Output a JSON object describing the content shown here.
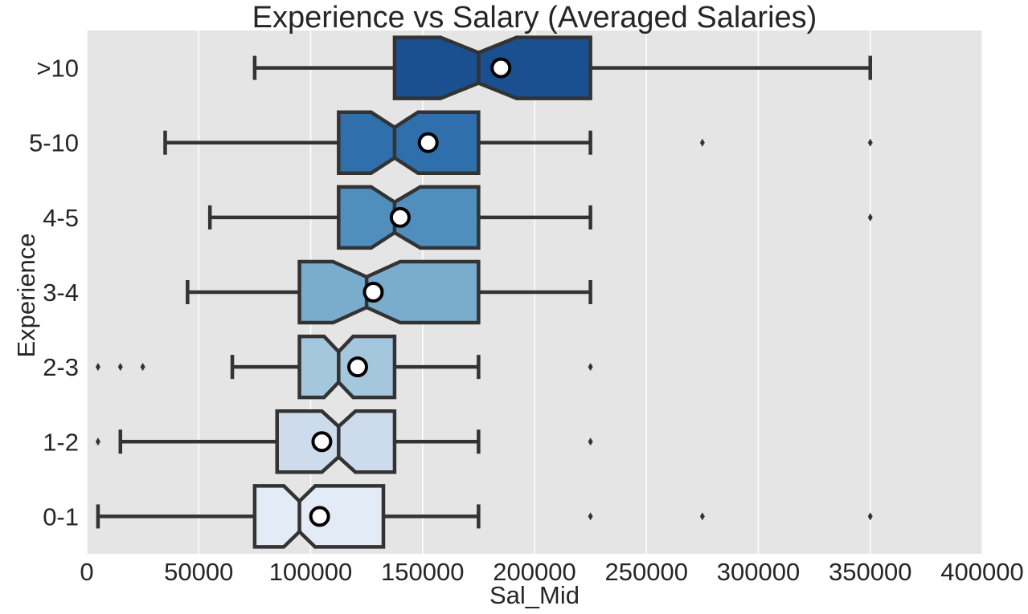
{
  "chart_data": {
    "type": "box",
    "orientation": "horizontal",
    "notched": true,
    "title": "Experience vs Salary (Averaged Salaries)",
    "xlabel": "Sal_Mid",
    "ylabel": "Experience",
    "xlim": [
      0,
      400000
    ],
    "xticks": [
      0,
      50000,
      100000,
      150000,
      200000,
      250000,
      300000,
      350000,
      400000
    ],
    "xtick_labels": [
      "0",
      "50000",
      "100000",
      "150000",
      "200000",
      "250000",
      "300000",
      "350000",
      "400000"
    ],
    "grid": true,
    "mean_marker": "white circle",
    "categories": [
      ">10",
      "5-10",
      "4-5",
      "3-4",
      "2-3",
      "1-2",
      "0-1"
    ],
    "boxes": [
      {
        "category": ">10",
        "whisker_low": 75000,
        "q1": 137500,
        "median": 175000,
        "q3": 225000,
        "whisker_high": 350000,
        "notch_low": 158000,
        "notch_high": 192000,
        "mean": 185000,
        "outliers": [],
        "color": "#1a5090"
      },
      {
        "category": "5-10",
        "whisker_low": 35000,
        "q1": 112500,
        "median": 137500,
        "q3": 175000,
        "whisker_high": 225000,
        "notch_low": 127000,
        "notch_high": 148000,
        "mean": 152500,
        "outliers": [
          275000,
          350000
        ],
        "color": "#2f6fab"
      },
      {
        "category": "4-5",
        "whisker_low": 55000,
        "q1": 112500,
        "median": 137500,
        "q3": 175000,
        "whisker_high": 225000,
        "notch_low": 127000,
        "notch_high": 149000,
        "mean": 140000,
        "outliers": [
          350000
        ],
        "color": "#4f8ebd"
      },
      {
        "category": "3-4",
        "whisker_low": 45000,
        "q1": 95000,
        "median": 125000,
        "q3": 175000,
        "whisker_high": 225000,
        "notch_low": 110000,
        "notch_high": 140000,
        "mean": 128000,
        "outliers": [],
        "color": "#7aacce"
      },
      {
        "category": "2-3",
        "whisker_low": 65000,
        "q1": 95000,
        "median": 112500,
        "q3": 137500,
        "whisker_high": 175000,
        "notch_low": 106000,
        "notch_high": 119000,
        "mean": 121000,
        "outliers": [
          5000,
          15000,
          25000,
          225000
        ],
        "color": "#a5c7de"
      },
      {
        "category": "1-2",
        "whisker_low": 15000,
        "q1": 85000,
        "median": 112500,
        "q3": 137500,
        "whisker_high": 175000,
        "notch_low": 105000,
        "notch_high": 120000,
        "mean": 105000,
        "outliers": [
          5000,
          225000
        ],
        "color": "#ccdcec"
      },
      {
        "category": "0-1",
        "whisker_low": 5000,
        "q1": 75000,
        "median": 95000,
        "q3": 132500,
        "whisker_high": 175000,
        "notch_low": 88000,
        "notch_high": 102000,
        "mean": 104000,
        "outliers": [
          225000,
          275000,
          350000
        ],
        "color": "#e3ebf6"
      }
    ]
  }
}
